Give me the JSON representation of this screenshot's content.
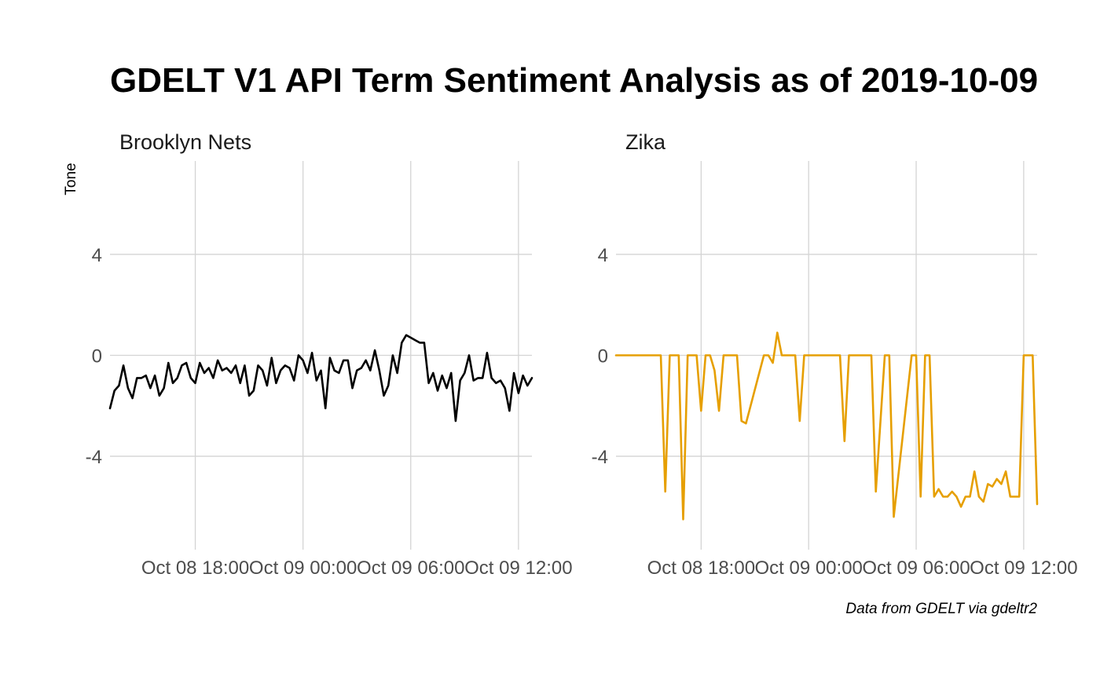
{
  "chart_data": {
    "type": "line",
    "title": "GDELT V1 API Term Sentiment Analysis as of 2019-10-09",
    "ylabel": "Tone",
    "caption": "Data from GDELT via gdeltr2",
    "ylim": [
      -7.7,
      7.7
    ],
    "y_ticks": [
      {
        "value": 4,
        "label": "4"
      },
      {
        "value": 0,
        "label": "0"
      },
      {
        "value": -4,
        "label": "-4"
      }
    ],
    "x_ticks": [
      {
        "value": "2019-10-08T18:00",
        "label": "Oct 08 18:00"
      },
      {
        "value": "2019-10-09T00:00",
        "label": "Oct 09 00:00"
      },
      {
        "value": "2019-10-09T06:00",
        "label": "Oct 09 06:00"
      },
      {
        "value": "2019-10-09T12:00",
        "label": "Oct 09 12:00"
      }
    ],
    "xlim": [
      "2019-10-08T13:15",
      "2019-10-09T12:45"
    ],
    "grid": true,
    "panels": [
      {
        "name": "Brooklyn Nets",
        "color": "#000000",
        "x": [
          "2019-10-08T13:15",
          "2019-10-08T13:30",
          "2019-10-08T13:45",
          "2019-10-08T14:00",
          "2019-10-08T14:15",
          "2019-10-08T14:30",
          "2019-10-08T14:45",
          "2019-10-08T15:00",
          "2019-10-08T15:15",
          "2019-10-08T15:30",
          "2019-10-08T15:45",
          "2019-10-08T16:00",
          "2019-10-08T16:15",
          "2019-10-08T16:30",
          "2019-10-08T16:45",
          "2019-10-08T17:00",
          "2019-10-08T17:15",
          "2019-10-08T17:30",
          "2019-10-08T17:45",
          "2019-10-08T18:00",
          "2019-10-08T18:15",
          "2019-10-08T18:30",
          "2019-10-08T18:45",
          "2019-10-08T19:00",
          "2019-10-08T19:15",
          "2019-10-08T19:30",
          "2019-10-08T19:45",
          "2019-10-08T20:00",
          "2019-10-08T20:15",
          "2019-10-08T20:30",
          "2019-10-08T20:45",
          "2019-10-08T21:00",
          "2019-10-08T21:15",
          "2019-10-08T21:30",
          "2019-10-08T21:45",
          "2019-10-08T22:00",
          "2019-10-08T22:15",
          "2019-10-08T22:30",
          "2019-10-08T22:45",
          "2019-10-08T23:00",
          "2019-10-08T23:15",
          "2019-10-08T23:30",
          "2019-10-08T23:45",
          "2019-10-09T00:00",
          "2019-10-09T00:15",
          "2019-10-09T00:30",
          "2019-10-09T00:45",
          "2019-10-09T01:00",
          "2019-10-09T01:15",
          "2019-10-09T01:30",
          "2019-10-09T01:45",
          "2019-10-09T02:00",
          "2019-10-09T02:15",
          "2019-10-09T02:30",
          "2019-10-09T02:45",
          "2019-10-09T03:00",
          "2019-10-09T03:15",
          "2019-10-09T03:30",
          "2019-10-09T03:45",
          "2019-10-09T04:00",
          "2019-10-09T04:15",
          "2019-10-09T04:30",
          "2019-10-09T04:45",
          "2019-10-09T05:00",
          "2019-10-09T05:15",
          "2019-10-09T05:30",
          "2019-10-09T05:45",
          "2019-10-09T06:00",
          "2019-10-09T06:15",
          "2019-10-09T06:30",
          "2019-10-09T06:45",
          "2019-10-09T07:00",
          "2019-10-09T07:15",
          "2019-10-09T07:30",
          "2019-10-09T07:45",
          "2019-10-09T08:00",
          "2019-10-09T08:15",
          "2019-10-09T08:30",
          "2019-10-09T08:45",
          "2019-10-09T09:00",
          "2019-10-09T09:15",
          "2019-10-09T09:30",
          "2019-10-09T09:45",
          "2019-10-09T10:00",
          "2019-10-09T10:15",
          "2019-10-09T10:30",
          "2019-10-09T10:45",
          "2019-10-09T11:00",
          "2019-10-09T11:15",
          "2019-10-09T11:30",
          "2019-10-09T11:45",
          "2019-10-09T12:00",
          "2019-10-09T12:15",
          "2019-10-09T12:30",
          "2019-10-09T12:45"
        ],
        "y": [
          -2.1,
          -1.4,
          -1.2,
          -0.4,
          -1.3,
          -1.7,
          -0.9,
          -0.9,
          -0.8,
          -1.3,
          -0.8,
          -1.6,
          -1.3,
          -0.3,
          -1.1,
          -0.9,
          -0.4,
          -0.3,
          -0.9,
          -1.1,
          -0.3,
          -0.7,
          -0.5,
          -0.9,
          -0.2,
          -0.6,
          -0.5,
          -0.7,
          -0.4,
          -1.1,
          -0.4,
          -1.6,
          -1.4,
          -0.4,
          -0.6,
          -1.2,
          -0.1,
          -1.1,
          -0.6,
          -0.4,
          -0.5,
          -1.0,
          0.0,
          -0.2,
          -0.7,
          0.1,
          -1.0,
          -0.6,
          -2.1,
          -0.1,
          -0.6,
          -0.7,
          -0.2,
          -0.2,
          -1.3,
          -0.6,
          -0.5,
          -0.2,
          -0.6,
          0.2,
          -0.6,
          -1.6,
          -1.2,
          0.0,
          -0.7,
          0.5,
          0.8,
          0.7,
          0.6,
          0.5,
          0.5,
          -1.1,
          -0.7,
          -1.4,
          -0.8,
          -1.3,
          -0.7,
          -2.6,
          -1.0,
          -0.7,
          0.0,
          -1.0,
          -0.9,
          -0.9,
          0.1,
          -0.9,
          -1.1,
          -1.0,
          -1.3,
          -2.2,
          -0.7,
          -1.5,
          -0.8,
          -1.2,
          -0.9
        ]
      },
      {
        "name": "Zika",
        "color": "#E69F00",
        "x": [
          "2019-10-08T13:15",
          "2019-10-08T14:30",
          "2019-10-08T15:45",
          "2019-10-08T16:00",
          "2019-10-08T16:15",
          "2019-10-08T16:30",
          "2019-10-08T16:45",
          "2019-10-08T17:00",
          "2019-10-08T17:15",
          "2019-10-08T17:30",
          "2019-10-08T17:45",
          "2019-10-08T18:00",
          "2019-10-08T18:15",
          "2019-10-08T18:30",
          "2019-10-08T18:45",
          "2019-10-08T19:00",
          "2019-10-08T19:15",
          "2019-10-08T19:30",
          "2019-10-08T20:00",
          "2019-10-08T20:15",
          "2019-10-08T20:30",
          "2019-10-08T21:30",
          "2019-10-08T21:45",
          "2019-10-08T22:00",
          "2019-10-08T22:15",
          "2019-10-08T22:30",
          "2019-10-08T23:00",
          "2019-10-08T23:15",
          "2019-10-08T23:30",
          "2019-10-08T23:45",
          "2019-10-09T00:00",
          "2019-10-09T01:45",
          "2019-10-09T02:00",
          "2019-10-09T02:15",
          "2019-10-09T03:15",
          "2019-10-09T03:30",
          "2019-10-09T03:45",
          "2019-10-09T04:15",
          "2019-10-09T04:30",
          "2019-10-09T04:45",
          "2019-10-09T05:45",
          "2019-10-09T06:00",
          "2019-10-09T06:15",
          "2019-10-09T06:30",
          "2019-10-09T06:45",
          "2019-10-09T07:00",
          "2019-10-09T07:15",
          "2019-10-09T07:30",
          "2019-10-09T07:45",
          "2019-10-09T08:00",
          "2019-10-09T08:15",
          "2019-10-09T08:30",
          "2019-10-09T08:45",
          "2019-10-09T09:00",
          "2019-10-09T09:15",
          "2019-10-09T09:30",
          "2019-10-09T09:45",
          "2019-10-09T10:00",
          "2019-10-09T10:15",
          "2019-10-09T10:30",
          "2019-10-09T10:45",
          "2019-10-09T11:00",
          "2019-10-09T11:15",
          "2019-10-09T11:30",
          "2019-10-09T11:45",
          "2019-10-09T12:00",
          "2019-10-09T12:15",
          "2019-10-09T12:30",
          "2019-10-09T12:45"
        ],
        "y": [
          0.0,
          0.0,
          0.0,
          -5.4,
          0.0,
          0.0,
          0.0,
          -6.5,
          0.0,
          0.0,
          0.0,
          -2.2,
          0.0,
          0.0,
          -0.6,
          -2.2,
          0.0,
          0.0,
          0.0,
          -2.6,
          -2.7,
          0.0,
          0.0,
          -0.3,
          0.9,
          0.0,
          0.0,
          0.0,
          -2.6,
          0.0,
          0.0,
          0.0,
          -3.4,
          0.0,
          0.0,
          0.0,
          -5.4,
          0.0,
          0.0,
          -6.4,
          0.0,
          0.0,
          -5.6,
          0.0,
          0.0,
          -5.6,
          -5.3,
          -5.6,
          -5.6,
          -5.4,
          -5.6,
          -6.0,
          -5.6,
          -5.6,
          -4.6,
          -5.6,
          -5.8,
          -5.1,
          -5.2,
          -4.9,
          -5.1,
          -4.6,
          -5.6,
          -5.6,
          -5.6,
          0.0,
          0.0,
          0.0,
          -5.9
        ]
      }
    ]
  }
}
